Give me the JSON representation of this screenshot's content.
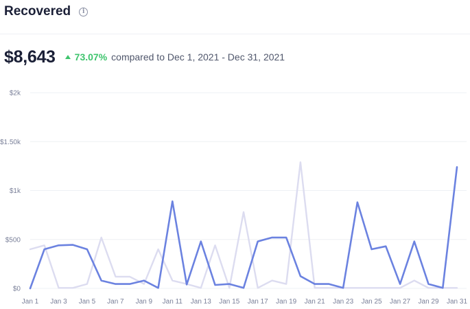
{
  "header": {
    "title": "Recovered",
    "info_icon": "info-circle-icon"
  },
  "summary": {
    "total": "$8,643",
    "delta_percent": "73.07%",
    "delta_direction": "up",
    "comparison_text": "compared to Dec 1, 2021 - Dec 31, 2021"
  },
  "colors": {
    "current_series": "#6b82e0",
    "previous_series": "#dcdcf0",
    "positive": "#3ec46d",
    "gridline": "#eef0f4"
  },
  "chart_data": {
    "type": "line",
    "y_ticks": [
      "$0",
      "$500",
      "$1k",
      "$1.50k",
      "$2k"
    ],
    "ylim": [
      0,
      2000
    ],
    "x": [
      1,
      2,
      3,
      4,
      5,
      6,
      7,
      8,
      9,
      10,
      11,
      12,
      13,
      14,
      15,
      16,
      17,
      18,
      19,
      20,
      21,
      22,
      23,
      24,
      25,
      26,
      27,
      28,
      29,
      30,
      31
    ],
    "x_tick_labels": [
      "Jan 1",
      "Jan 3",
      "Jan 5",
      "Jan 7",
      "Jan 9",
      "Jan 11",
      "Jan 13",
      "Jan 15",
      "Jan 17",
      "Jan 19",
      "Jan 21",
      "Jan 23",
      "Jan 25",
      "Jan 27",
      "Jan 29",
      "Jan 31"
    ],
    "x_tick_days": [
      1,
      3,
      5,
      7,
      9,
      11,
      13,
      15,
      17,
      19,
      21,
      23,
      25,
      27,
      29,
      31
    ],
    "grid": true,
    "series": [
      {
        "role": "current",
        "values": [
          0,
          400,
          440,
          445,
          400,
          80,
          45,
          45,
          80,
          5,
          890,
          40,
          480,
          35,
          45,
          5,
          480,
          520,
          520,
          125,
          45,
          45,
          5,
          880,
          400,
          430,
          45,
          480,
          45,
          5,
          1240
        ]
      },
      {
        "role": "previous",
        "values": [
          400,
          440,
          5,
          5,
          45,
          520,
          120,
          120,
          45,
          400,
          80,
          45,
          5,
          440,
          5,
          780,
          5,
          80,
          45,
          1290,
          5,
          5,
          5,
          5,
          5,
          5,
          5,
          80,
          5,
          5,
          5
        ]
      }
    ]
  }
}
